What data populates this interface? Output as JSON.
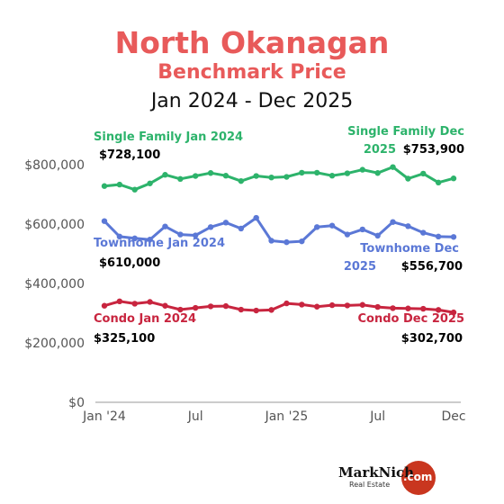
{
  "title": "North Okanagan",
  "subtitle": "Benchmark Price",
  "date_range": "Jan 2024 - Dec 2025",
  "colors": {
    "title": "#e85a5a",
    "single_family": "#2db36b",
    "townhome": "#5b78d6",
    "condo": "#c8253f"
  },
  "annotations": {
    "sf_start_label": "Single Family Jan 2024",
    "sf_start_value": "$728,100",
    "sf_end_label_1": "Single Family Dec",
    "sf_end_label_2": "2025",
    "sf_end_value": "$753,900",
    "th_start_label": "Townhome Jan 2024",
    "th_start_value": "$610,000",
    "th_end_label_1": "Townhome Dec",
    "th_end_label_2": "2025",
    "th_end_value": "$556,700",
    "condo_start_label": "Condo Jan 2024",
    "condo_start_value": "$325,100",
    "condo_end_label": "Condo Dec 2025",
    "condo_end_value": "$302,700"
  },
  "logo": {
    "brand": "MarkNich",
    "domain": ".com",
    "tagline": "Real Estate"
  },
  "chart_data": {
    "type": "line",
    "grid": false,
    "ylim": [
      0,
      900000
    ],
    "y_ticks": [
      {
        "value": 0,
        "label": "$0"
      },
      {
        "value": 200000,
        "label": "$200,000"
      },
      {
        "value": 400000,
        "label": "$400,000"
      },
      {
        "value": 600000,
        "label": "$600,000"
      },
      {
        "value": 800000,
        "label": "$800,000"
      }
    ],
    "x_ticks": [
      {
        "index": 0,
        "label": "Jan '24"
      },
      {
        "index": 6,
        "label": "Jul"
      },
      {
        "index": 12,
        "label": "Jan '25"
      },
      {
        "index": 18,
        "label": "Jul"
      },
      {
        "index": 23,
        "label": "Dec"
      }
    ],
    "x": [
      "Jan 2024",
      "Feb 2024",
      "Mar 2024",
      "Apr 2024",
      "May 2024",
      "Jun 2024",
      "Jul 2024",
      "Aug 2024",
      "Sep 2024",
      "Oct 2024",
      "Nov 2024",
      "Dec 2024",
      "Jan 2025",
      "Feb 2025",
      "Mar 2025",
      "Apr 2025",
      "May 2025",
      "Jun 2025",
      "Jul 2025",
      "Aug 2025",
      "Sep 2025",
      "Oct 2025",
      "Nov 2025",
      "Dec 2025"
    ],
    "series": [
      {
        "key": "single_family",
        "values": [
          728100,
          733000,
          716000,
          737000,
          766000,
          752000,
          762000,
          772000,
          763000,
          745000,
          762000,
          757000,
          759000,
          773000,
          773000,
          763000,
          771000,
          783000,
          772000,
          792000,
          753000,
          770000,
          740000,
          753900
        ]
      },
      {
        "key": "townhome",
        "values": [
          610000,
          558000,
          552000,
          548000,
          592000,
          565000,
          562000,
          590000,
          605000,
          585000,
          621000,
          544000,
          539000,
          542000,
          590000,
          595000,
          565000,
          582000,
          561000,
          607000,
          593000,
          571000,
          558000,
          556700
        ]
      },
      {
        "key": "condo",
        "values": [
          325100,
          340000,
          332000,
          338000,
          325000,
          312000,
          318000,
          323000,
          324000,
          312000,
          309000,
          311000,
          333000,
          329000,
          322000,
          327000,
          326000,
          328000,
          321000,
          317000,
          316000,
          315000,
          311000,
          302700
        ]
      }
    ]
  }
}
